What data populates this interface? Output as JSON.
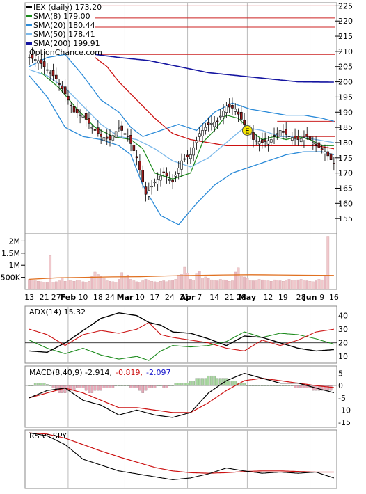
{
  "chart_data": [
    {
      "type": "line",
      "panel": "price",
      "ylim": [
        150,
        226
      ],
      "yticks": [
        155,
        160,
        165,
        170,
        175,
        180,
        185,
        190,
        195,
        200,
        205,
        210,
        215,
        220,
        225
      ],
      "legend": {
        "placement": "top-left",
        "entries": [
          {
            "label": "IEX (daily) 173.20",
            "color": "#000000"
          },
          {
            "label": "SMA(8) 179.00",
            "color": "#1a8a1a"
          },
          {
            "label": "SMA(20) 180.44",
            "color": "#2a8ad8"
          },
          {
            "label": "SMA(50) 178.41",
            "color": "#7ab8ea"
          },
          {
            "label": "SMA(200) 199.91",
            "color": "#1414a0"
          }
        ],
        "source": "OptionChance.com"
      },
      "annotation": "E",
      "resistance_lines": [
        225,
        221,
        218,
        209
      ],
      "channel_lines": [
        187,
        182
      ],
      "ema_long_color": "#cc1111",
      "price": {
        "days": [
          0,
          3,
          6,
          9,
          12,
          15,
          18,
          21,
          24,
          27,
          30,
          33,
          36,
          39,
          42,
          45,
          48,
          51,
          54,
          57,
          60,
          63,
          66,
          69,
          72,
          75,
          78,
          81,
          84,
          87,
          90,
          93,
          96,
          99,
          102
        ],
        "values": [
          208,
          207,
          204,
          201,
          196,
          190,
          189,
          185,
          182,
          181,
          185,
          182,
          175,
          163,
          167,
          170,
          167,
          174,
          176,
          183,
          186,
          187,
          192,
          191,
          186,
          181,
          180,
          181,
          184,
          182,
          181,
          182,
          179,
          177,
          173
        ]
      },
      "sma8": {
        "days": [
          4,
          10,
          16,
          22,
          28,
          34,
          38,
          42,
          48,
          54,
          58,
          62,
          66,
          70,
          74,
          78,
          82,
          86,
          90,
          94,
          98,
          102
        ],
        "values": [
          203,
          198,
          191,
          185,
          182,
          181,
          178,
          170,
          168,
          170,
          180,
          184,
          189,
          188,
          184,
          181,
          182,
          181,
          182,
          181,
          179,
          179
        ]
      },
      "sma20": {
        "days": [
          0,
          6,
          12,
          18,
          24,
          30,
          36,
          42,
          48,
          54,
          60,
          66,
          72,
          78,
          84,
          90,
          96,
          102
        ],
        "values": [
          204,
          202,
          198,
          192,
          186,
          182,
          181,
          178,
          174,
          172,
          175,
          180,
          185,
          184,
          182,
          182,
          181,
          180
        ]
      },
      "band_upper": {
        "days": [
          0,
          6,
          12,
          18,
          24,
          30,
          34,
          38,
          44,
          50,
          56,
          62,
          68,
          74,
          80,
          86,
          92,
          98,
          102
        ],
        "values": [
          205,
          208,
          209,
          202,
          194,
          190,
          185,
          182,
          184,
          186,
          184,
          190,
          193,
          191,
          190,
          189,
          189,
          188,
          187
        ]
      },
      "band_lower": {
        "days": [
          0,
          6,
          12,
          18,
          24,
          30,
          34,
          38,
          44,
          50,
          56,
          62,
          68,
          74,
          80,
          86,
          92,
          98,
          102
        ],
        "values": [
          202,
          195,
          185,
          182,
          181,
          179,
          176,
          166,
          156,
          153,
          160,
          166,
          170,
          172,
          174,
          176,
          177,
          177,
          176
        ]
      },
      "ema_long": {
        "days": [
          22,
          26,
          30,
          36,
          42,
          48,
          54,
          60,
          66,
          72,
          78,
          84,
          90,
          96,
          102
        ],
        "values": [
          208,
          205,
          200,
          194,
          188,
          183,
          181,
          180,
          179,
          179,
          179,
          179,
          179,
          179,
          178
        ]
      },
      "sma200": {
        "days": [
          22,
          30,
          40,
          50,
          60,
          70,
          80,
          90,
          102
        ],
        "values": [
          209,
          208,
          207,
          205,
          203,
          202,
          201,
          200,
          199.9
        ]
      }
    },
    {
      "type": "bar",
      "panel": "volume",
      "ytick_labels": [
        "2M",
        "1.5M",
        "1M",
        "500K"
      ],
      "ytick_values": [
        2000000,
        1500000,
        1000000,
        500000
      ],
      "ylim": [
        0,
        2300000
      ],
      "values": [
        420000,
        380000,
        360000,
        340000,
        320000,
        310000,
        300000,
        1400000,
        300000,
        320000,
        360000,
        500000,
        340000,
        380000,
        360000,
        340000,
        380000,
        360000,
        320000,
        300000,
        340000,
        560000,
        720000,
        620000,
        560000,
        480000,
        360000,
        340000,
        320000,
        300000,
        420000,
        700000,
        560000,
        600000,
        420000,
        360000,
        320000,
        300000,
        360000,
        420000,
        380000,
        340000,
        320000,
        300000,
        340000,
        360000,
        320000,
        360000,
        380000,
        420000,
        600000,
        620000,
        920000,
        680000,
        420000,
        380000,
        640000,
        760000,
        480000,
        520000,
        460000,
        400000,
        380000,
        360000,
        420000,
        400000,
        380000,
        340000,
        360000,
        720000,
        900000,
        560000,
        520000,
        460000,
        380000,
        360000,
        380000,
        420000,
        400000,
        380000,
        360000,
        340000,
        400000,
        380000,
        360000,
        340000,
        380000,
        420000,
        380000,
        360000,
        400000,
        420000,
        380000,
        360000,
        340000,
        320000,
        360000,
        420000,
        400000,
        600000,
        2200000
      ],
      "avg_line": [
        420000,
        480000,
        500000,
        520000,
        530000,
        560000,
        580000,
        600000,
        610000,
        600000,
        590000,
        580000
      ]
    },
    {
      "type": "line",
      "panel": "adx",
      "title": "ADX(14) 15.32",
      "ylim": [
        5,
        47
      ],
      "yticks": [
        10,
        20,
        30,
        40
      ],
      "adx": {
        "days": [
          0,
          6,
          12,
          18,
          24,
          30,
          36,
          40,
          44,
          48,
          54,
          60,
          66,
          72,
          78,
          84,
          90,
          96,
          102
        ],
        "values": [
          14,
          13,
          20,
          29,
          38,
          42,
          40,
          35,
          33,
          28,
          27,
          23,
          18,
          25,
          24,
          20,
          16,
          14,
          15
        ]
      },
      "plus_di": {
        "days": [
          0,
          6,
          12,
          18,
          24,
          30,
          36,
          40,
          44,
          48,
          54,
          60,
          66,
          72,
          78,
          84,
          90,
          96,
          102
        ],
        "values": [
          22,
          16,
          12,
          16,
          11,
          8,
          10,
          7,
          14,
          18,
          17,
          18,
          21,
          28,
          24,
          27,
          26,
          23,
          19
        ]
      },
      "minus_di": {
        "days": [
          0,
          6,
          12,
          18,
          24,
          30,
          36,
          40,
          44,
          48,
          54,
          60,
          66,
          72,
          78,
          84,
          90,
          96,
          102
        ],
        "values": [
          30,
          26,
          18,
          26,
          29,
          27,
          30,
          35,
          26,
          24,
          22,
          20,
          16,
          14,
          22,
          18,
          22,
          28,
          30
        ]
      }
    },
    {
      "type": "area",
      "panel": "macd",
      "title": "MACD(8,40,9)",
      "readouts": [
        {
          "text": "-2.914,",
          "color": "#000000"
        },
        {
          "text": "-0.819,",
          "color": "#cc1111"
        },
        {
          "text": "-2.097",
          "color": "#1414cc"
        }
      ],
      "ylim": [
        -17,
        8
      ],
      "yticks": [
        5,
        0,
        -5,
        -10,
        -15
      ],
      "macd": {
        "days": [
          0,
          6,
          12,
          18,
          24,
          30,
          36,
          42,
          48,
          54,
          60,
          66,
          72,
          78,
          84,
          90,
          96,
          102
        ],
        "values": [
          -5,
          -2,
          -1,
          -6,
          -8,
          -12,
          -10,
          -12,
          -13,
          -11,
          -3,
          2,
          5,
          3,
          1,
          1,
          -1,
          -2.9
        ]
      },
      "signal": {
        "days": [
          0,
          6,
          12,
          18,
          24,
          30,
          36,
          42,
          48,
          54,
          60,
          66,
          72,
          78,
          84,
          90,
          96,
          102
        ],
        "values": [
          -5,
          -3,
          -1,
          -3,
          -6,
          -9,
          -9,
          -10,
          -11,
          -11,
          -7,
          -2,
          2,
          3,
          2,
          1,
          0,
          -0.8
        ]
      },
      "histogram": [
        0,
        0,
        1,
        1,
        1,
        1,
        0.5,
        0,
        -1,
        -2,
        -3,
        -3,
        -3,
        -2,
        -2,
        -2,
        -1,
        -1,
        -1,
        -2,
        -3,
        -3,
        -2,
        -2,
        -2,
        -1,
        -1,
        -1,
        -1,
        0,
        0,
        0,
        0,
        0,
        -1,
        -1,
        -1,
        -2,
        -3,
        -2,
        -1,
        -1,
        -1,
        0,
        0,
        -1,
        -1,
        0,
        0,
        1,
        1,
        1,
        1,
        1,
        2,
        2,
        3,
        3,
        3,
        3,
        4,
        4,
        4,
        3,
        3,
        3,
        3,
        2,
        2,
        2,
        1,
        1,
        1,
        0,
        0,
        0,
        0,
        0,
        0,
        0,
        0,
        0,
        0,
        0,
        0,
        0,
        0,
        0,
        0,
        -1,
        -1,
        -1,
        -1,
        -1,
        -1,
        -2,
        -2,
        -2,
        -2,
        -2,
        -2,
        -2
      ]
    },
    {
      "type": "line",
      "panel": "rs",
      "title": "RS vs SPY",
      "ylim": [
        0,
        10
      ],
      "rs": {
        "days": [
          0,
          6,
          12,
          18,
          24,
          30,
          36,
          42,
          48,
          54,
          60,
          66,
          72,
          78,
          84,
          90,
          96,
          102
        ],
        "values": [
          9.5,
          9,
          7.5,
          5,
          4,
          3,
          2.5,
          2,
          1.5,
          1.8,
          2.5,
          3.5,
          3,
          2.6,
          2.8,
          2.6,
          2.8,
          1.8
        ]
      },
      "rs_ma": {
        "days": [
          0,
          6,
          12,
          18,
          24,
          30,
          36,
          42,
          48,
          54,
          60,
          66,
          72,
          78,
          84,
          90,
          96,
          102
        ],
        "values": [
          9.5,
          9.3,
          8.6,
          7.5,
          6.4,
          5.4,
          4.5,
          3.6,
          3,
          2.7,
          2.6,
          2.7,
          2.9,
          3,
          3,
          2.9,
          2.8,
          2.8
        ]
      }
    }
  ],
  "x_axis": {
    "labels": [
      {
        "text": "13",
        "day": 0
      },
      {
        "text": "21",
        "day": 5
      },
      {
        "text": "27",
        "day": 9
      },
      {
        "text": "Feb",
        "day": 13,
        "bold": true
      },
      {
        "text": "10",
        "day": 18
      },
      {
        "text": "18",
        "day": 23
      },
      {
        "text": "24",
        "day": 27
      },
      {
        "text": "Mar",
        "day": 32,
        "bold": true
      },
      {
        "text": "10",
        "day": 37
      },
      {
        "text": "17",
        "day": 42
      },
      {
        "text": "24",
        "day": 47
      },
      {
        "text": "31",
        "day": 52
      },
      {
        "text": "Apr",
        "day": 53,
        "bold": true
      },
      {
        "text": "7",
        "day": 57
      },
      {
        "text": "14",
        "day": 62
      },
      {
        "text": "21",
        "day": 67
      },
      {
        "text": "28",
        "day": 71
      },
      {
        "text": "May",
        "day": 73,
        "bold": true
      },
      {
        "text": "12",
        "day": 80
      },
      {
        "text": "19",
        "day": 85
      },
      {
        "text": "28",
        "day": 91
      },
      {
        "text": "Jun",
        "day": 94,
        "bold": true
      },
      {
        "text": "9",
        "day": 98
      },
      {
        "text": "16",
        "day": 102
      }
    ]
  }
}
